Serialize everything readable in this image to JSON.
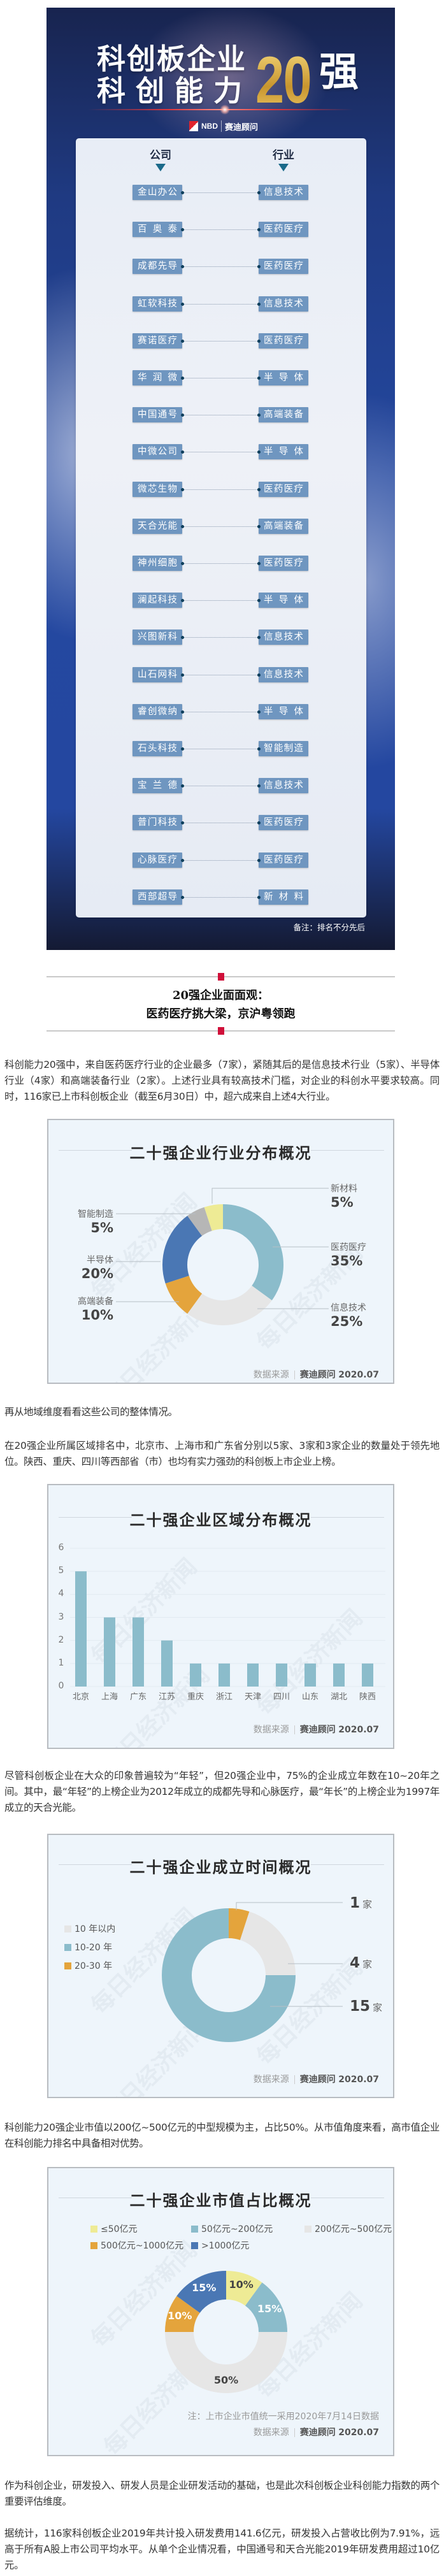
{
  "poster": {
    "title_line1": "科创板企业",
    "title_line2": "科创能力",
    "title_number": "20",
    "title_suffix": "强",
    "logo_nbd": "NBD",
    "logo_ccid": "赛迪顾问",
    "header_company": "公司",
    "header_industry": "行业",
    "rows": [
      {
        "company": "金山办公",
        "industry": "信息技术"
      },
      {
        "company": "百奥泰",
        "industry": "医药医疗"
      },
      {
        "company": "成都先导",
        "industry": "医药医疗"
      },
      {
        "company": "虹软科技",
        "industry": "信息技术"
      },
      {
        "company": "赛诺医疗",
        "industry": "医药医疗"
      },
      {
        "company": "华润微",
        "industry": "半导体"
      },
      {
        "company": "中国通号",
        "industry": "高端装备"
      },
      {
        "company": "中微公司",
        "industry": "半导体"
      },
      {
        "company": "微芯生物",
        "industry": "医药医疗"
      },
      {
        "company": "天合光能",
        "industry": "高端装备"
      },
      {
        "company": "神州细胞",
        "industry": "医药医疗"
      },
      {
        "company": "澜起科技",
        "industry": "半导体"
      },
      {
        "company": "兴图新科",
        "industry": "信息技术"
      },
      {
        "company": "山石网科",
        "industry": "信息技术"
      },
      {
        "company": "睿创微纳",
        "industry": "半导体"
      },
      {
        "company": "石头科技",
        "industry": "智能制造"
      },
      {
        "company": "宝兰德",
        "industry": "信息技术"
      },
      {
        "company": "普门科技",
        "industry": "医药医疗"
      },
      {
        "company": "心脉医疗",
        "industry": "医药医疗"
      },
      {
        "company": "西部超导",
        "industry": "新材料"
      }
    ],
    "footnote": "备注：排名不分先后"
  },
  "section": {
    "heading_line1": "20强企业面面观：",
    "heading_line2": "医药医疗挑大梁，京沪粤领跑",
    "accent_color": "#d0103a"
  },
  "paragraphs": {
    "p1": "科创能力20强中，来自医药医疗行业的企业最多（7家），紧随其后的是信息技术行业（5家）、半导体行业（4家）和高端装备行业（2家）。上述行业具有较高技术门槛，对企业的科创水平要求较高。同时，116家已上市科创板企业（截至6月30日）中，超六成来自上述4大行业。",
    "p2": "再从地域维度看看这些公司的整体情况。",
    "p3": "在20强企业所属区域排名中，北京市、上海市和广东省分别以5家、3家和3家企业的数量处于领先地位。陕西、重庆、四川等西部省（市）也均有实力强劲的科创板上市企业上榜。",
    "p4": "尽管科创板企业在大众的印象普遍较为“年轻”，但20强企业中，75%的企业成立年数在10~20年之间。其中，最“年轻”的上榜企业为2012年成立的成都先导和心脉医疗，最“年长”的上榜企业为1997年成立的天合光能。",
    "p5": "科创能力20强企业市值以200亿~500亿元的中型规模为主，占比50%。从市值角度来看，高市值企业在科创能力排名中具备相对优势。",
    "p6": "作为科创企业，研发投入、研发人员是企业研发活动的基础，也是此次科创板企业科创能力指数的两个重要评估维度。",
    "p7": "据统计，116家科创板企业2019年共计投入研发费用141.6亿元，研发投入占营收比例为7.91%，远高于所有A股上市公司平均水平。从单个企业情况看，中国通号和天合光能2019年研发费用超过10亿元。"
  },
  "source": {
    "label": "数据来源",
    "org": "赛迪顾问",
    "date": "2020.07"
  },
  "watermark": "每日经济新闻",
  "chart_data": [
    {
      "type": "pie",
      "title": "二十强企业行业分布概况",
      "unit": "%",
      "slices": [
        {
          "label": "医药医疗",
          "value": 35,
          "color": "#8bbccb"
        },
        {
          "label": "信息技术",
          "value": 25,
          "color": "#e6e6e6"
        },
        {
          "label": "高端装备",
          "value": 10,
          "color": "#e4a43c"
        },
        {
          "label": "半导体",
          "value": 20,
          "color": "#4a77b4"
        },
        {
          "label": "智能制造",
          "value": 5,
          "color": "#b6b6b6"
        },
        {
          "label": "新材料",
          "value": 5,
          "color": "#eeeb95"
        }
      ]
    },
    {
      "type": "bar",
      "title": "二十强企业区域分布概况",
      "categories": [
        "北京",
        "上海",
        "广东",
        "江苏",
        "重庆",
        "浙江",
        "天津",
        "四川",
        "山东",
        "湖北",
        "陕西"
      ],
      "values": [
        5,
        3,
        3,
        2,
        1,
        1,
        1,
        1,
        1,
        1,
        1
      ],
      "ylim": [
        0,
        6
      ],
      "yticks": [
        0,
        1,
        2,
        3,
        4,
        5,
        6
      ],
      "grid": true,
      "color": "#8bbccb"
    },
    {
      "type": "pie",
      "title": "二十强企业成立时间概况",
      "unit_label": "家",
      "legend_position": "left",
      "slices": [
        {
          "label": "20-30 年",
          "value": 1,
          "color": "#e4a43c"
        },
        {
          "label": "10 年以内",
          "value": 4,
          "color": "#e6e6e6"
        },
        {
          "label": "10-20 年",
          "value": 15,
          "color": "#8bbccb"
        }
      ],
      "legend_order": [
        "10 年以内",
        "10-20 年",
        "20-30 年"
      ]
    },
    {
      "type": "pie",
      "title": "二十强企业市值占比概况",
      "unit": "%",
      "legend_position": "top",
      "slices": [
        {
          "label": "≤50亿元",
          "value": 10,
          "color": "#eeeb95"
        },
        {
          "label": "50亿元~200亿元",
          "value": 15,
          "color": "#8bbccb"
        },
        {
          "label": "200亿元~500亿元",
          "value": 50,
          "color": "#e6e6e6"
        },
        {
          "label": "500亿元~1000亿元",
          "value": 10,
          "color": "#e4a43c"
        },
        {
          "label": ">1000亿元",
          "value": 15,
          "color": "#4a77b4"
        }
      ],
      "note": "注：上市企业市值统一采用2020年7月14日数据"
    }
  ]
}
